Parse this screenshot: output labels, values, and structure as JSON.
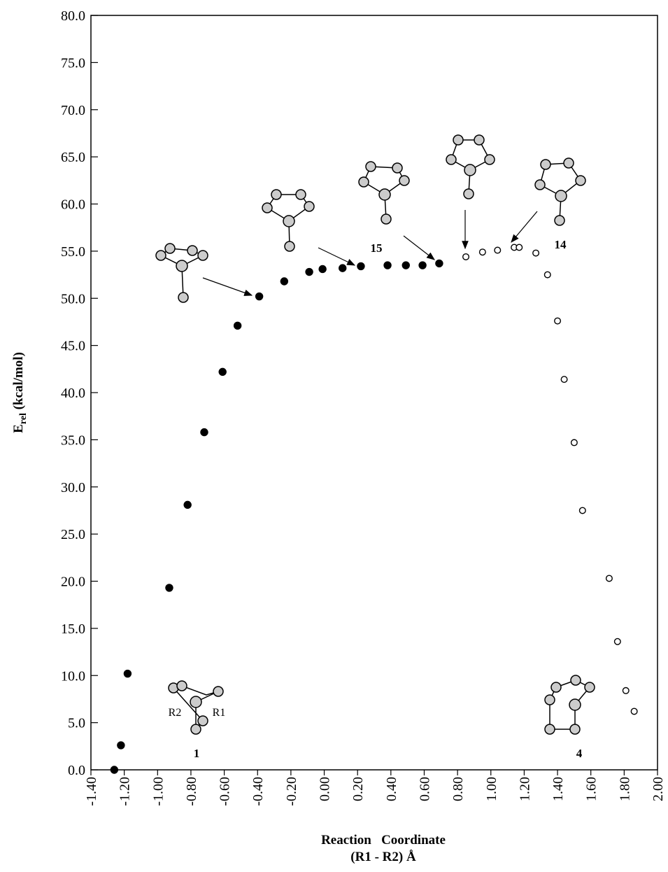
{
  "chart_data": {
    "type": "scatter",
    "ylabel": [
      "E",
      "rel",
      " (kcal/mol)"
    ],
    "xlabel": [
      "Reaction   Coordinate",
      "(R1 - R2) Å"
    ],
    "annotations": [
      "15",
      "14",
      "1",
      "4",
      "R2",
      "R1"
    ],
    "xlim": [
      -1.4,
      2.0
    ],
    "ylim": [
      0,
      80
    ],
    "xticks": [
      {
        "value": -1.4,
        "label": "-1.40"
      },
      {
        "value": -1.2,
        "label": "-1.20"
      },
      {
        "value": -1.0,
        "label": "-1.00"
      },
      {
        "value": -0.8,
        "label": "-0.80"
      },
      {
        "value": -0.6,
        "label": "-0.60"
      },
      {
        "value": -0.4,
        "label": "-0.40"
      },
      {
        "value": -0.2,
        "label": "-0.20"
      },
      {
        "value": 0,
        "label": "0.00"
      },
      {
        "value": 0.2,
        "label": "0.20"
      },
      {
        "value": 0.4,
        "label": "0.40"
      },
      {
        "value": 0.6,
        "label": "0.60"
      },
      {
        "value": 0.8,
        "label": "0.80"
      },
      {
        "value": 1.0,
        "label": "1.00"
      },
      {
        "value": 1.2,
        "label": "1.20"
      },
      {
        "value": 1.4,
        "label": "1.40"
      },
      {
        "value": 1.6,
        "label": "1.60"
      },
      {
        "value": 1.8,
        "label": "1.80"
      },
      {
        "value": 2.0,
        "label": "2.00"
      }
    ],
    "yticks": [
      {
        "value": 0,
        "label": "0.0"
      },
      {
        "value": 5,
        "label": "5.0"
      },
      {
        "value": 10,
        "label": "10.0"
      },
      {
        "value": 15,
        "label": "15.0"
      },
      {
        "value": 20,
        "label": "20.0"
      },
      {
        "value": 25,
        "label": "25.0"
      },
      {
        "value": 30,
        "label": "30.0"
      },
      {
        "value": 35,
        "label": "35.0"
      },
      {
        "value": 40,
        "label": "40.0"
      },
      {
        "value": 45,
        "label": "45.0"
      },
      {
        "value": 50,
        "label": "50.0"
      },
      {
        "value": 55,
        "label": "55.0"
      },
      {
        "value": 60,
        "label": "60.0"
      },
      {
        "value": 65,
        "label": "65.0"
      },
      {
        "value": 70,
        "label": "70.0"
      },
      {
        "value": 75,
        "label": "75.0"
      },
      {
        "value": 80,
        "label": "80.0"
      }
    ],
    "series": [
      {
        "marker": "filled",
        "color": "#000000",
        "x": [
          -1.26,
          -1.22,
          -1.18,
          -0.93,
          -0.82,
          -0.72,
          -0.61,
          -0.52,
          -0.39,
          -0.24,
          -0.09,
          -0.01,
          0.11,
          0.22,
          0.38,
          0.49,
          0.59,
          0.69
        ],
        "values": [
          0,
          2.6,
          10.2,
          19.3,
          28.1,
          35.8,
          42.2,
          47.1,
          50.2,
          51.8,
          52.8,
          53.1,
          53.2,
          53.4,
          53.5,
          53.5,
          53.5,
          53.7
        ]
      },
      {
        "marker": "open",
        "color": "#000000",
        "x": [
          0.85,
          0.95,
          1.04,
          1.14,
          1.17,
          1.27,
          1.34,
          1.4,
          1.44,
          1.5,
          1.55,
          1.71,
          1.76,
          1.81,
          1.86
        ],
        "values": [
          54.4,
          54.9,
          55.1,
          55.4,
          55.4,
          54.8,
          52.5,
          47.6,
          41.4,
          34.7,
          27.5,
          20.3,
          13.6,
          8.4,
          6.2
        ]
      }
    ]
  }
}
